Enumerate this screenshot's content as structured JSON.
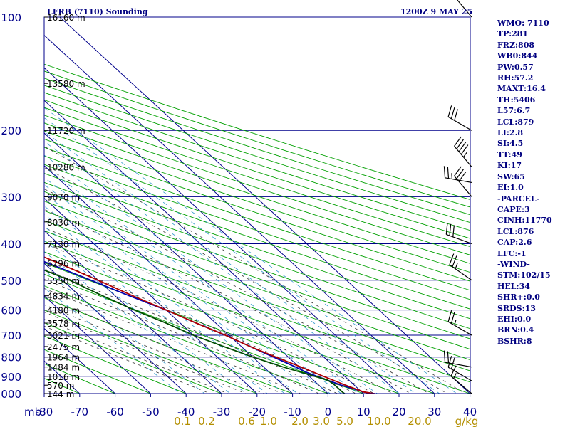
{
  "header": {
    "title": "LFRB (7110) Sounding",
    "datetime": "1200Z  9 MAY 25"
  },
  "indices": [
    "WMO: 7110",
    "TP:281",
    "FRZ:808",
    "WB0:844",
    "PW:0.57",
    "RH:57.2",
    "MAXT:16.4",
    "TH:5406",
    "L57:6.7",
    "LCL:879",
    "LI:2.8",
    "SI:4.5",
    "TT:49",
    "KI:17",
    "SW:65",
    "EI:1.0",
    "-PARCEL-",
    "CAPE:3",
    "CINH:11770",
    "LCL:876",
    "CAP:2.6",
    "LFC:-1",
    "-WIND-",
    "STM:102/15",
    "HEL:34",
    "SHR+:0.0",
    "SRDS:13",
    "EHI:0.0",
    "BRN:0.4",
    "BSHR:8"
  ],
  "colors": {
    "grid": "#00008b",
    "dry_adiabat": "#00a000",
    "moist_adiabat": "#333333",
    "mixing_ratio": "#3399cc",
    "temperature": "#b00000",
    "dewpoint": "#004d00",
    "parcel": "#0000b0",
    "mixing_label": "#b38f00"
  },
  "chart_data": {
    "type": "line",
    "diagram": "skew-T log-P",
    "title": "LFRB (7110) Sounding",
    "datetime": "1200Z  9 MAY 25",
    "x_unit_label": "mb",
    "pressure_levels_mb": [
      100,
      200,
      300,
      400,
      500,
      600,
      700,
      800,
      900,
      1000
    ],
    "pressure_tick_labels": [
      "100",
      "200",
      "300",
      "400",
      "500",
      "600",
      "700",
      "800",
      "900",
      "1000"
    ],
    "temperature_ticks_c": [
      -80,
      -70,
      -60,
      -50,
      -40,
      -30,
      -20,
      -10,
      0,
      10,
      20,
      30,
      40
    ],
    "temperature_tick_labels": [
      "-80",
      "-70",
      "-60",
      "-50",
      "-40",
      "-30",
      "-20",
      "-10",
      "0",
      "10",
      "20",
      "30",
      "40"
    ],
    "mixing_ratio_labels": [
      "0.1",
      "0.2",
      "0.6",
      "1.0",
      "2.0",
      "3.0",
      "5.0",
      "10.0",
      "20.0"
    ],
    "mixing_ratio_unit": "g/kg",
    "height_labels": [
      {
        "p": 100,
        "label": "16160 m"
      },
      {
        "p": 150,
        "label": "13580 m"
      },
      {
        "p": 200,
        "label": "11720 m"
      },
      {
        "p": 250,
        "label": "10280 m"
      },
      {
        "p": 300,
        "label": "9070 m"
      },
      {
        "p": 350,
        "label": "8030 m"
      },
      {
        "p": 400,
        "label": "7130 m"
      },
      {
        "p": 450,
        "label": "6296 m"
      },
      {
        "p": 500,
        "label": "5550 m"
      },
      {
        "p": 550,
        "label": "4834 m"
      },
      {
        "p": 600,
        "label": "4180 m"
      },
      {
        "p": 650,
        "label": "3578 m"
      },
      {
        "p": 700,
        "label": "3021 m"
      },
      {
        "p": 750,
        "label": "2475 m"
      },
      {
        "p": 800,
        "label": "1964 m"
      },
      {
        "p": 850,
        "label": "1484 m"
      },
      {
        "p": 900,
        "label": "1016 m"
      },
      {
        "p": 950,
        "label": "570 m"
      },
      {
        "p": 1000,
        "label": "144 m"
      }
    ],
    "series": [
      {
        "key": "temperature",
        "points": [
          [
            1003,
            13.5
          ],
          [
            990,
            10.5
          ],
          [
            950,
            7.5
          ],
          [
            900,
            4
          ],
          [
            850,
            0.5
          ],
          [
            800,
            -3.5
          ],
          [
            750,
            -7.5
          ],
          [
            700,
            -11
          ],
          [
            650,
            -15.5
          ],
          [
            600,
            -20
          ],
          [
            550,
            -25
          ],
          [
            500,
            -30
          ],
          [
            450,
            -36
          ],
          [
            400,
            -43
          ],
          [
            350,
            -48
          ],
          [
            300,
            -53
          ],
          [
            250,
            -55
          ],
          [
            200,
            -51
          ],
          [
            150,
            -53
          ],
          [
            100,
            -57
          ]
        ]
      },
      {
        "key": "dewpoint",
        "points": [
          [
            1003,
            4.7
          ],
          [
            990,
            4.5
          ],
          [
            950,
            4.5
          ],
          [
            920,
            4
          ],
          [
            900,
            1.5
          ],
          [
            850,
            -4.5
          ],
          [
            800,
            -10
          ],
          [
            750,
            -15
          ],
          [
            700,
            -20
          ],
          [
            650,
            -24
          ],
          [
            600,
            -29
          ],
          [
            550,
            -33.5
          ],
          [
            500,
            -38
          ],
          [
            450,
            -45
          ],
          [
            400,
            -53
          ],
          [
            350,
            -61
          ],
          [
            300,
            -68
          ],
          [
            270,
            -71
          ],
          [
            250,
            -78
          ],
          [
            200,
            -85
          ]
        ]
      },
      {
        "key": "parcel",
        "points": [
          [
            1003,
            13.5
          ],
          [
            990,
            10.5
          ],
          [
            950,
            6.3
          ],
          [
            900,
            2.2
          ],
          [
            876,
            0.3
          ],
          [
            850,
            -1
          ],
          [
            800,
            -4.2
          ],
          [
            750,
            -7.5
          ],
          [
            700,
            -11
          ],
          [
            650,
            -15.5
          ],
          [
            600,
            -20
          ],
          [
            550,
            -26
          ],
          [
            500,
            -32
          ],
          [
            450,
            -39
          ],
          [
            400,
            -47
          ],
          [
            350,
            -57
          ],
          [
            300,
            -67
          ],
          [
            250,
            -79
          ],
          [
            210,
            -84
          ]
        ]
      }
    ],
    "wind_barbs": [
      {
        "p": 100,
        "dir": 320,
        "spd": 5
      },
      {
        "p": 200,
        "dir": 300,
        "spd": 30
      },
      {
        "p": 250,
        "dir": 320,
        "spd": 45
      },
      {
        "p": 275,
        "dir": 280,
        "spd": 25
      },
      {
        "p": 300,
        "dir": 320,
        "spd": 30
      },
      {
        "p": 400,
        "dir": 290,
        "spd": 30
      },
      {
        "p": 500,
        "dir": 305,
        "spd": 25
      },
      {
        "p": 700,
        "dir": 300,
        "spd": 25
      },
      {
        "p": 850,
        "dir": 280,
        "spd": 20
      },
      {
        "p": 925,
        "dir": 300,
        "spd": 20
      },
      {
        "p": 1000,
        "dir": 310,
        "spd": 15
      }
    ]
  }
}
